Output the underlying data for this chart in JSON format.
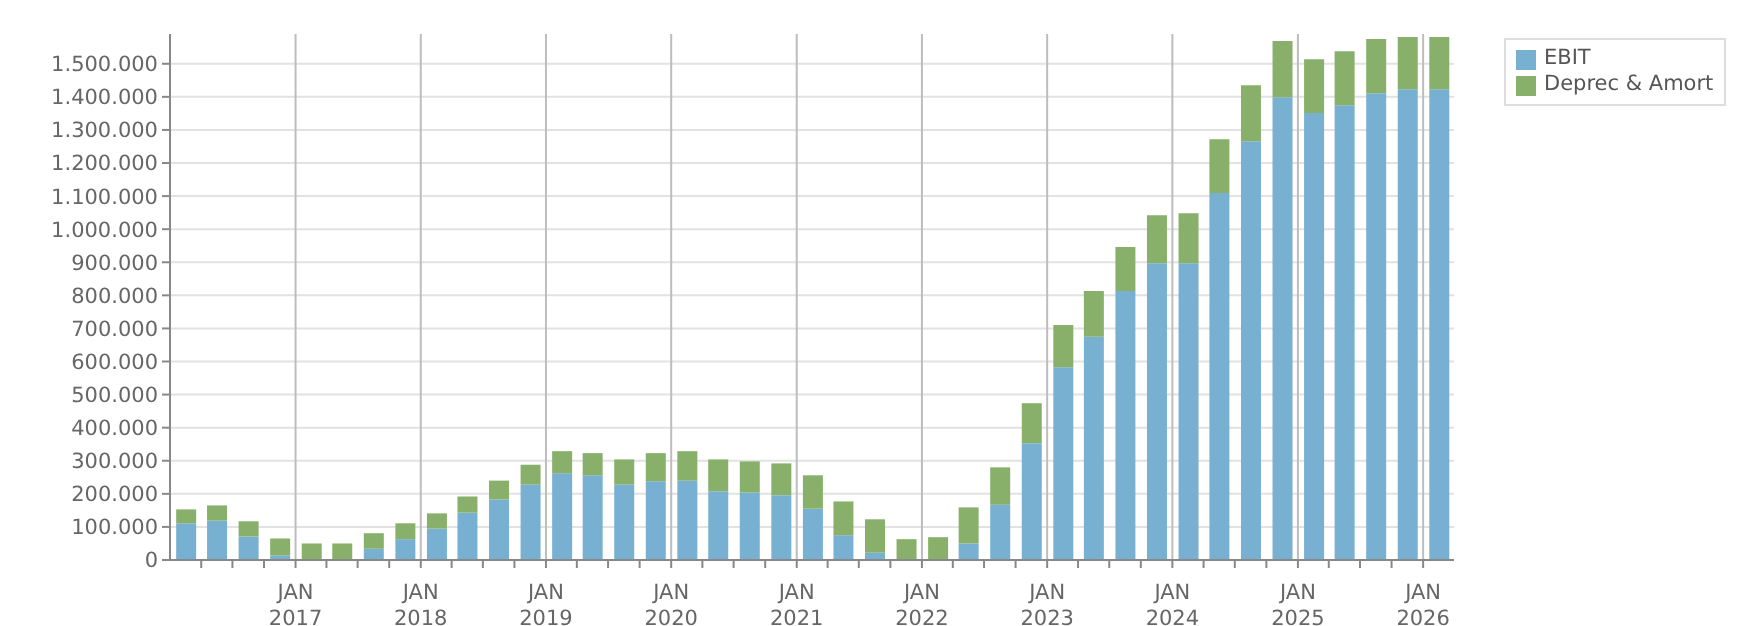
{
  "chart_data": {
    "type": "bar",
    "stacked": true,
    "x": [
      "2016-02-15",
      "2016-05-15",
      "2016-08-15",
      "2016-11-15",
      "2017-02-15",
      "2017-05-15",
      "2017-08-15",
      "2017-11-15",
      "2018-02-15",
      "2018-05-15",
      "2018-08-15",
      "2018-11-15",
      "2019-02-15",
      "2019-05-15",
      "2019-08-15",
      "2019-11-15",
      "2020-02-15",
      "2020-05-15",
      "2020-08-15",
      "2020-11-15",
      "2021-02-15",
      "2021-05-15",
      "2021-08-15",
      "2021-11-15",
      "2022-02-15",
      "2022-05-15",
      "2022-08-15",
      "2022-11-15",
      "2023-02-15",
      "2023-05-15",
      "2023-08-15",
      "2023-11-15",
      "2024-02-15",
      "2024-05-15",
      "2024-08-15",
      "2024-11-15",
      "2025-02-15",
      "2025-05-15",
      "2025-08-15",
      "2025-11-15",
      "2026-02-15"
    ],
    "series": [
      {
        "name": "EBIT",
        "color": "#78b0d2",
        "values": [
          111000,
          119000,
          71000,
          14000,
          0,
          0,
          34000,
          63000,
          95000,
          143000,
          183000,
          228000,
          262000,
          256000,
          228000,
          238000,
          240000,
          208000,
          204000,
          196000,
          155000,
          75000,
          22000,
          0,
          0,
          50000,
          167000,
          353000,
          583000,
          675000,
          813000,
          897000,
          897000,
          1109000,
          1266000,
          1399000,
          1351000,
          1375000,
          1411000,
          1423000,
          1423000
        ]
      },
      {
        "name": "Deprec & Amort",
        "color": "#88b06a",
        "values": [
          42000,
          46000,
          46000,
          51000,
          50000,
          50000,
          47000,
          48000,
          46000,
          49000,
          57000,
          60000,
          67000,
          67000,
          76000,
          85000,
          89000,
          96000,
          94000,
          96000,
          101000,
          102000,
          101000,
          63000,
          69000,
          109000,
          113000,
          121000,
          127000,
          138000,
          133000,
          145000,
          151000,
          163000,
          169000,
          170000,
          163000,
          163000,
          164000,
          158000,
          158000
        ]
      }
    ],
    "xlim": [
      "2016-01-01",
      "2026-04-01"
    ],
    "xticks": [
      {
        "value": "2016-04-01",
        "label": null
      },
      {
        "value": "2016-07-01",
        "label": null
      },
      {
        "value": "2016-10-01",
        "label": null
      },
      {
        "value": "2017-01-01",
        "label": "JAN\n2017"
      },
      {
        "value": "2017-04-01",
        "label": null
      },
      {
        "value": "2017-07-01",
        "label": null
      },
      {
        "value": "2017-10-01",
        "label": null
      },
      {
        "value": "2018-01-01",
        "label": "JAN\n2018"
      },
      {
        "value": "2018-04-01",
        "label": null
      },
      {
        "value": "2018-07-01",
        "label": null
      },
      {
        "value": "2018-10-01",
        "label": null
      },
      {
        "value": "2019-01-01",
        "label": "JAN\n2019"
      },
      {
        "value": "2019-04-01",
        "label": null
      },
      {
        "value": "2019-07-01",
        "label": null
      },
      {
        "value": "2019-10-01",
        "label": null
      },
      {
        "value": "2020-01-01",
        "label": "JAN\n2020"
      },
      {
        "value": "2020-04-01",
        "label": null
      },
      {
        "value": "2020-07-01",
        "label": null
      },
      {
        "value": "2020-10-01",
        "label": null
      },
      {
        "value": "2021-01-01",
        "label": "JAN\n2021"
      },
      {
        "value": "2021-04-01",
        "label": null
      },
      {
        "value": "2021-07-01",
        "label": null
      },
      {
        "value": "2021-10-01",
        "label": null
      },
      {
        "value": "2022-01-01",
        "label": "JAN\n2022"
      },
      {
        "value": "2022-04-01",
        "label": null
      },
      {
        "value": "2022-07-01",
        "label": null
      },
      {
        "value": "2022-10-01",
        "label": null
      },
      {
        "value": "2023-01-01",
        "label": "JAN\n2023"
      },
      {
        "value": "2023-04-01",
        "label": null
      },
      {
        "value": "2023-07-01",
        "label": null
      },
      {
        "value": "2023-10-01",
        "label": null
      },
      {
        "value": "2024-01-01",
        "label": "JAN\n2024"
      },
      {
        "value": "2024-04-01",
        "label": null
      },
      {
        "value": "2024-07-01",
        "label": null
      },
      {
        "value": "2024-10-01",
        "label": null
      },
      {
        "value": "2025-01-01",
        "label": "JAN\n2025"
      },
      {
        "value": "2025-04-01",
        "label": null
      },
      {
        "value": "2025-07-01",
        "label": null
      },
      {
        "value": "2025-10-01",
        "label": null
      },
      {
        "value": "2026-01-01",
        "label": "JAN\n2026"
      }
    ],
    "ylim": [
      0,
      1590000
    ],
    "yticks": [
      0,
      {
        "value": 100000,
        "label": "100.000"
      },
      {
        "value": 200000,
        "label": "200.000"
      },
      {
        "value": 300000,
        "label": "300.000"
      },
      {
        "value": 400000,
        "label": "400.000"
      },
      {
        "value": 500000,
        "label": "500.000"
      },
      {
        "value": 600000,
        "label": "600.000"
      },
      {
        "value": 700000,
        "label": "700.000"
      },
      {
        "value": 800000,
        "label": "800.000"
      },
      {
        "value": 900000,
        "label": "900.000"
      },
      {
        "value": 1000000,
        "label": "1.000.000"
      },
      {
        "value": 1100000,
        "label": "1.100.000"
      },
      {
        "value": 1200000,
        "label": "1.200.000"
      },
      {
        "value": 1300000,
        "label": "1.300.000"
      },
      {
        "value": 1400000,
        "label": "1.400.000"
      },
      {
        "value": 1500000,
        "label": "1.500.000"
      }
    ],
    "grid": true,
    "legend": "top right"
  }
}
